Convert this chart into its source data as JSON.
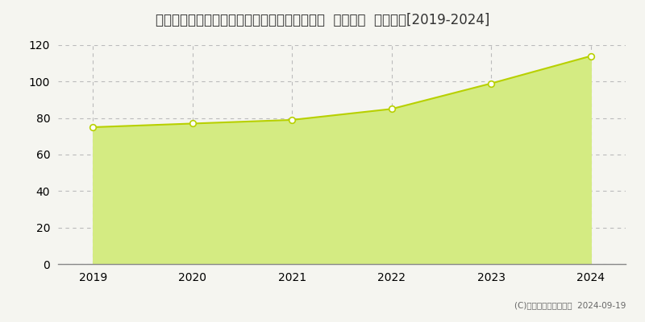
{
  "title": "千葉県流山市おおたかの森西１丁目２８番４外  基準地価  地価推移[2019-2024]",
  "years": [
    2019,
    2020,
    2021,
    2022,
    2023,
    2024
  ],
  "values": [
    75.0,
    77.0,
    79.0,
    85.0,
    99.0,
    114.0
  ],
  "line_color": "#b8d000",
  "fill_color": "#d4eb82",
  "marker_color": "#ffffff",
  "marker_edge_color": "#b8d000",
  "background_color": "#f5f5f0",
  "plot_bg_color": "#f5f5f0",
  "grid_color": "#bbbbbb",
  "vgrid_color": "#bbbbbb",
  "ylim": [
    0,
    120
  ],
  "yticks": [
    0,
    20,
    40,
    60,
    80,
    100,
    120
  ],
  "title_fontsize": 12,
  "axis_fontsize": 10,
  "copyright_text": "(C)土地価格ドットコム  2024-09-19"
}
